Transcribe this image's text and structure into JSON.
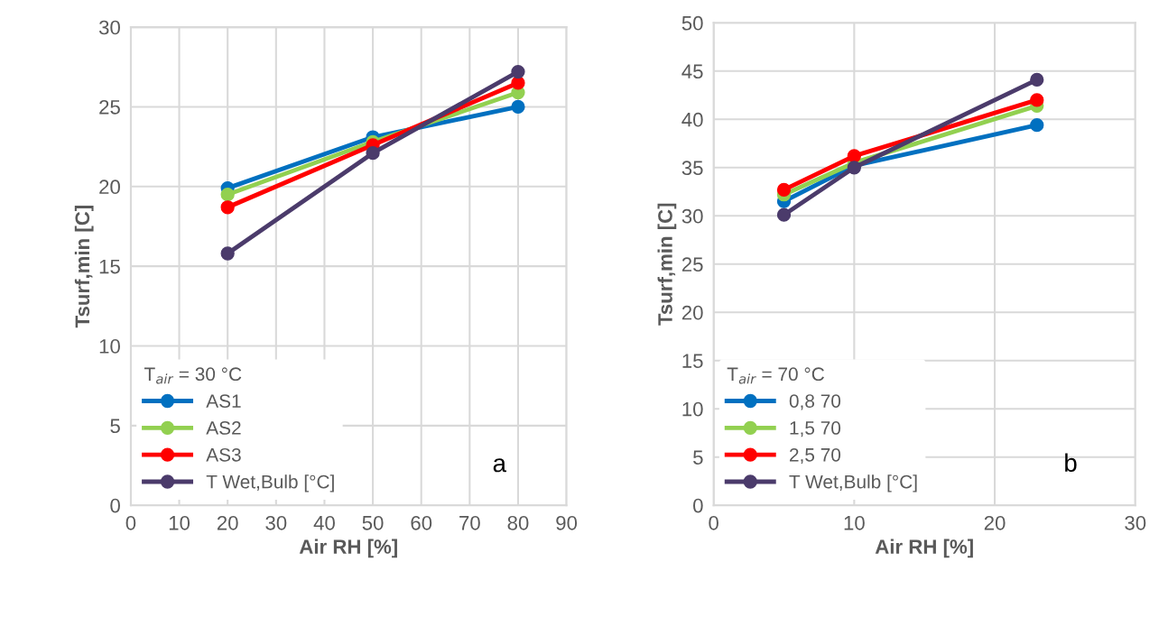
{
  "chart_data": [
    {
      "type": "line",
      "xlabel": "Air RH [%]",
      "ylabel": "Tsurf,min [C]",
      "legend_title": "T$_{air}$ = 30 °C",
      "annotations": [
        "a"
      ],
      "x": [
        20,
        50,
        80
      ],
      "xlim": [
        0,
        90
      ],
      "xticks": [
        0,
        10,
        20,
        30,
        40,
        50,
        60,
        70,
        80,
        90
      ],
      "ylim": [
        0,
        30
      ],
      "yticks": [
        0,
        5,
        10,
        15,
        20,
        25,
        30
      ],
      "grid": true,
      "legend": "bottom left",
      "marker": "circle",
      "line_style": "solid",
      "series": [
        {
          "name": "AS1",
          "color": "#0070c0",
          "values": [
            19.9,
            23.1,
            25.0
          ]
        },
        {
          "name": "AS2",
          "color": "#92d050",
          "values": [
            19.5,
            22.8,
            25.9
          ]
        },
        {
          "name": "AS3",
          "color": "#ff0000",
          "values": [
            18.7,
            22.6,
            26.5
          ]
        },
        {
          "name": "T Wet,Bulb [°C]",
          "color": "#4b3b6b",
          "values": [
            15.8,
            22.1,
            27.2
          ]
        }
      ]
    },
    {
      "type": "line",
      "xlabel": "Air RH [%]",
      "ylabel": "Tsurf,min [C]",
      "legend_title": "T$_{air}$ = 70 °C",
      "annotations": [
        "b"
      ],
      "x": [
        5,
        10,
        23
      ],
      "xlim": [
        0,
        30
      ],
      "xticks": [
        0,
        10,
        20,
        30
      ],
      "ylim": [
        0,
        50
      ],
      "yticks": [
        0,
        5,
        10,
        15,
        20,
        25,
        30,
        35,
        40,
        45,
        50
      ],
      "grid": true,
      "legend": "bottom left",
      "marker": "circle",
      "line_style": "solid",
      "series": [
        {
          "name": "0,8 70",
          "color": "#0070c0",
          "values": [
            31.5,
            35.2,
            39.4
          ]
        },
        {
          "name": "1,5 70",
          "color": "#92d050",
          "values": [
            32.2,
            35.5,
            41.4
          ]
        },
        {
          "name": "2,5 70",
          "color": "#ff0000",
          "values": [
            32.7,
            36.2,
            42.0
          ]
        },
        {
          "name": "T Wet,Bulb [°C]",
          "color": "#4b3b6b",
          "values": [
            30.1,
            35.0,
            44.1
          ]
        }
      ]
    }
  ]
}
